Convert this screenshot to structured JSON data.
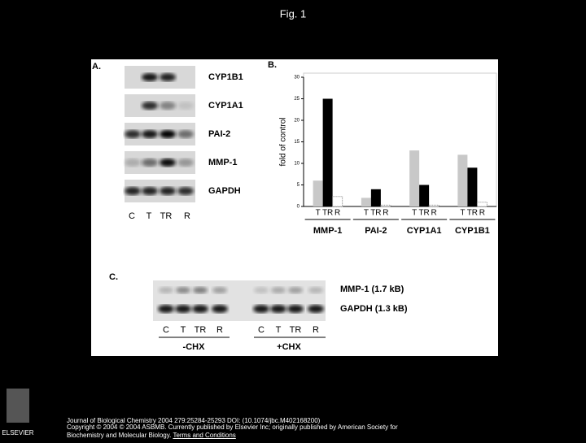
{
  "slide_title": "Fig. 1",
  "panel_a": {
    "label": "A.",
    "bands": [
      "CYP1B1",
      "CYP1A1",
      "PAI-2",
      "MMP-1",
      "GAPDH"
    ],
    "lanes": [
      "C",
      "T",
      "TR",
      "R"
    ]
  },
  "chart_data": {
    "type": "bar",
    "panel_label": "B.",
    "y_label": "fold of control",
    "categories": [
      "MMP-1",
      "PAI-2",
      "CYP1A1",
      "CYP1B1"
    ],
    "series": [
      {
        "name": "T",
        "color": "#c8c8c8",
        "values": [
          6,
          2,
          13,
          12
        ]
      },
      {
        "name": "TR",
        "color": "#000000",
        "values": [
          25,
          4,
          5,
          9
        ]
      },
      {
        "name": "R",
        "color": "#ffffff",
        "values": [
          2.3,
          0.3,
          0.3,
          1
        ]
      }
    ],
    "ylim": [
      0,
      30
    ],
    "yticks": [
      0,
      5,
      10,
      15,
      20,
      25,
      30
    ]
  },
  "panel_c": {
    "label": "C.",
    "bands": [
      "MMP-1 (1.7 kB)",
      "GAPDH  (1.3 kB)"
    ],
    "lanes": [
      "C",
      "T",
      "TR",
      "R",
      "C",
      "T",
      "TR",
      "R"
    ],
    "groups": [
      "-CHX",
      "+CHX"
    ]
  },
  "footer": {
    "logo": "ELSEVIER",
    "citation": "Journal of Biological Chemistry 2004 279:25284-25293 DOI: (10.1074/jbc.M402168200)",
    "copyright": "Copyright © 2004 © 2004 ASBMB. Currently published by Elsevier Inc; originally published by American Society for Biochemistry and Molecular Biology.",
    "link": "Terms and Conditions"
  }
}
